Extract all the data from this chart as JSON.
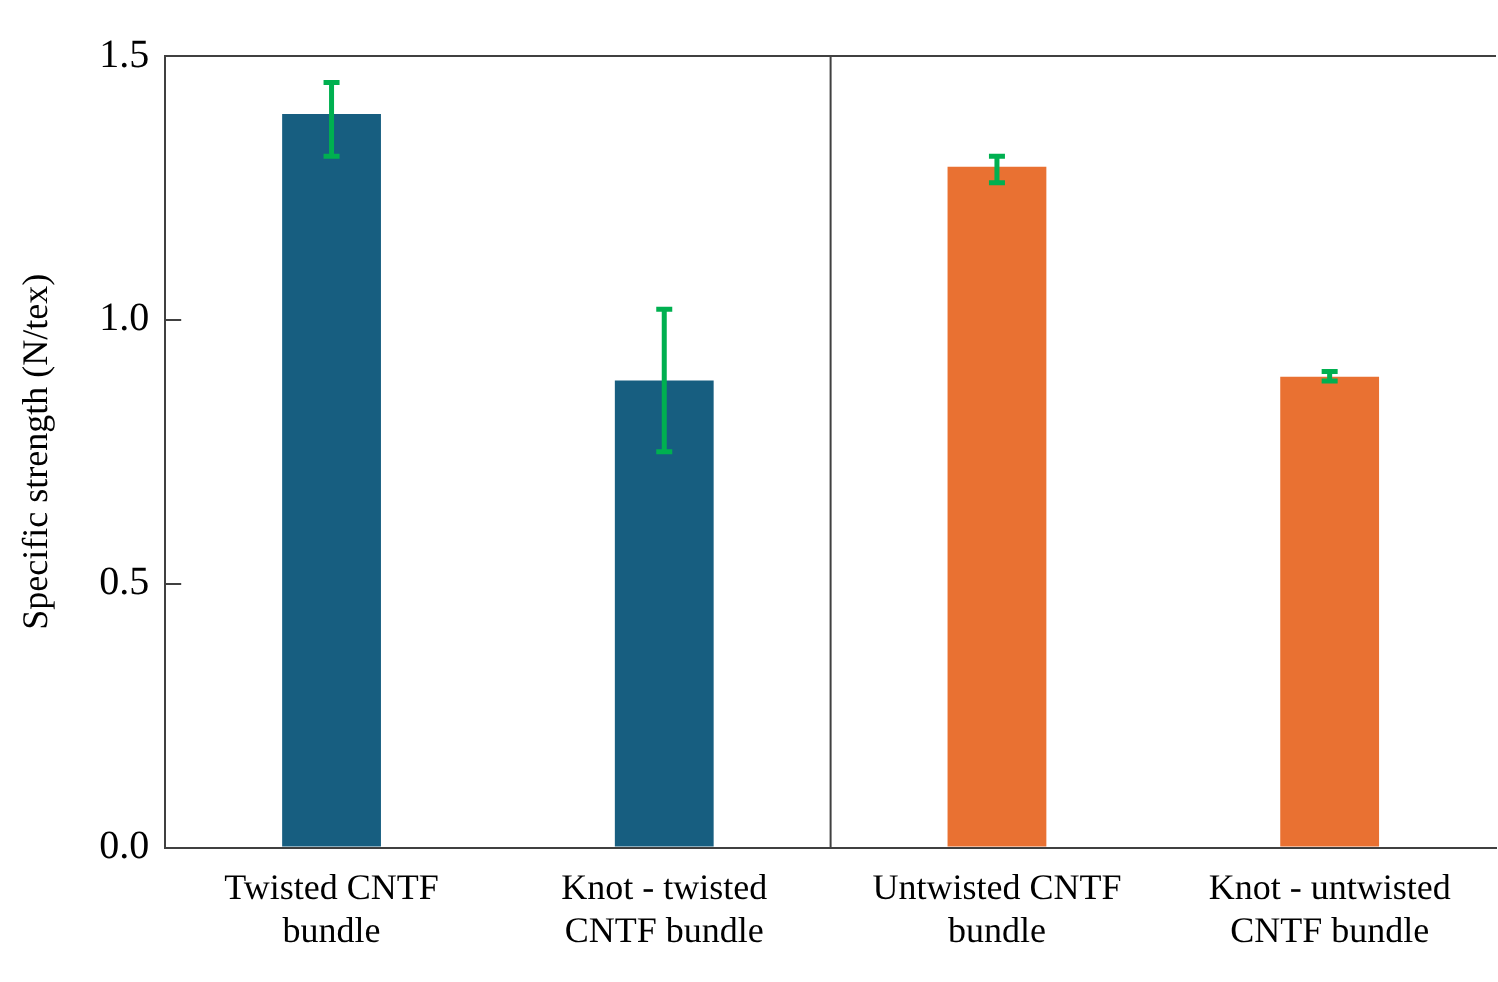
{
  "chart_data": {
    "type": "bar",
    "ylabel": "Specific strength (N/tex)",
    "categories": [
      "Twisted CNTF\nbundle",
      "Knot - twisted\nCNTF bundle",
      "Untwisted CNTF\nbundle",
      "Knot - untwisted\nCNTF bundle"
    ],
    "values": [
      1.39,
      0.885,
      1.29,
      0.892
    ],
    "colors": [
      "#175e80",
      "#175e80",
      "#e97132",
      "#e97132"
    ],
    "errors": [
      [
        1.31,
        1.45
      ],
      [
        0.75,
        1.02
      ],
      [
        1.26,
        1.31
      ],
      [
        0.884,
        0.902
      ]
    ],
    "ylim": [
      0,
      1.5
    ],
    "yticks": [
      {
        "value": 0,
        "label": "0.0"
      },
      {
        "value": 0.5,
        "label": "0.5"
      },
      {
        "value": 1,
        "label": "1.0"
      },
      {
        "value": 1.5,
        "label": "1.5"
      }
    ],
    "grid": false,
    "legend": false
  }
}
